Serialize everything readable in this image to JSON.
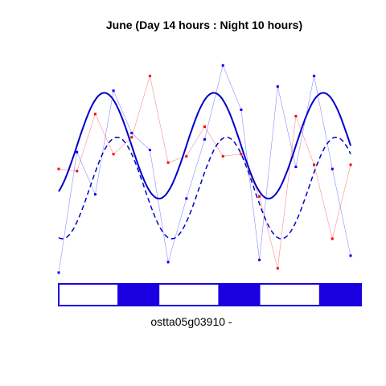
{
  "chart_data": {
    "type": "line",
    "title": "June (Day 14 hours : Night 10 hours)",
    "xlabel": "ostta05g03910 -",
    "ylabel": "",
    "grid": false,
    "x": [
      0,
      1,
      2,
      3,
      4,
      5,
      6,
      7,
      8,
      9,
      10,
      11,
      12,
      13,
      14,
      15,
      16
    ],
    "xlim": [
      0,
      16
    ],
    "ylim": [
      0,
      1
    ],
    "series": [
      {
        "color": "#0000ff",
        "style": "points-line",
        "values": [
          0.0,
          0.57,
          0.37,
          0.86,
          0.66,
          0.58,
          0.05,
          0.35,
          0.63,
          0.98,
          0.77,
          0.06,
          0.88,
          0.5,
          0.93,
          0.49,
          0.08
        ]
      },
      {
        "color": "#ff0000",
        "style": "points-line",
        "values": [
          0.49,
          0.48,
          0.75,
          0.56,
          0.64,
          0.93,
          0.52,
          0.55,
          0.69,
          0.55,
          0.56,
          0.36,
          0.02,
          0.74,
          0.51,
          0.16,
          0.51
        ]
      },
      {
        "color": "#0000cc",
        "style": "solid-fit",
        "period": 6,
        "mean": 0.6,
        "amplitude": 0.25,
        "peak_x": 2.5
      },
      {
        "color": "#0000cc",
        "style": "dashed-fit",
        "period": 6,
        "mean": 0.4,
        "amplitude": 0.24,
        "peak_x": 3.2
      }
    ],
    "day_night_bar": {
      "day_color": "#ffffff",
      "night_color": "#1a00e0",
      "segments": [
        {
          "state": "day",
          "start": 0,
          "end": 14
        },
        {
          "state": "night",
          "start": 14,
          "end": 24
        },
        {
          "state": "day",
          "start": 24,
          "end": 38
        },
        {
          "state": "night",
          "start": 38,
          "end": 48
        },
        {
          "state": "day",
          "start": 48,
          "end": 62
        },
        {
          "state": "night",
          "start": 62,
          "end": 72
        }
      ],
      "range": [
        0,
        72
      ]
    }
  }
}
